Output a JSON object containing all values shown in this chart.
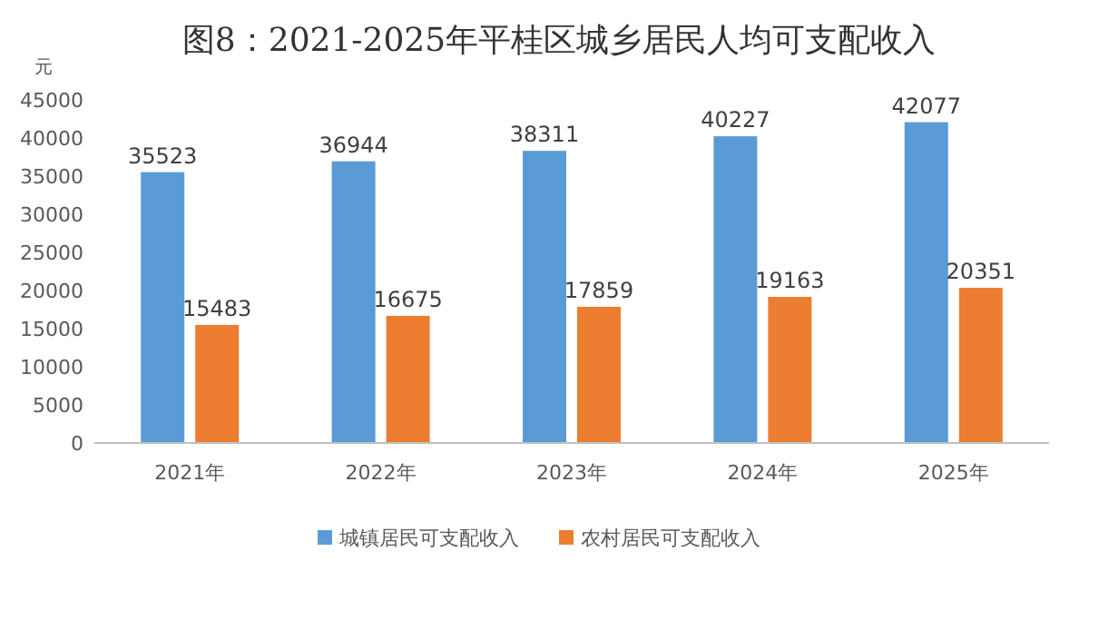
{
  "chart_data": {
    "type": "bar",
    "title": "图8：2021-2025年平桂区城乡居民人均可支配收入",
    "ylabel": "元",
    "categories": [
      "2021年",
      "2022年",
      "2023年",
      "2024年",
      "2025年"
    ],
    "series": [
      {
        "name": "城镇居民可支配收入",
        "color": "#5b9bd5",
        "values": [
          35523,
          36944,
          38311,
          40227,
          42077
        ]
      },
      {
        "name": "农村居民可支配收入",
        "color": "#ed7d31",
        "values": [
          15483,
          16675,
          17859,
          19163,
          20351
        ]
      }
    ],
    "ylim": [
      0,
      45000
    ],
    "yticks": [
      0,
      5000,
      10000,
      15000,
      20000,
      25000,
      30000,
      35000,
      40000,
      45000
    ],
    "data_labels": true,
    "legend": "bottom"
  }
}
